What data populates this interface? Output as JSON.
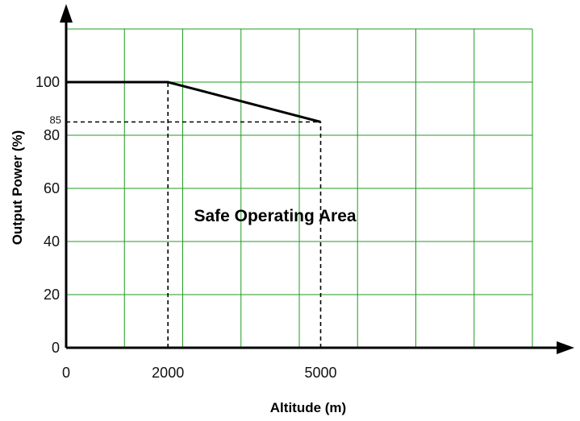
{
  "chart_data": {
    "type": "line",
    "xlabel": "Altitude (m)",
    "ylabel": "Output Power (%)",
    "xlim": [
      0,
      8000
    ],
    "ylim": [
      0,
      120
    ],
    "x_tick_labels": [
      {
        "value": 0,
        "label": "0"
      },
      {
        "value": 2000,
        "label": "2000"
      },
      {
        "value": 5000,
        "label": "5000"
      }
    ],
    "y_tick_labels": [
      {
        "value": 0,
        "label": "0"
      },
      {
        "value": 20,
        "label": "20"
      },
      {
        "value": 40,
        "label": "40"
      },
      {
        "value": 60,
        "label": "60"
      },
      {
        "value": 80,
        "label": "80"
      },
      {
        "value": 100,
        "label": "100"
      }
    ],
    "extra_y_label": {
      "value": 85,
      "label": "85"
    },
    "grid": true,
    "grid_color": "#1f9b1f",
    "series": [
      {
        "x": [
          0,
          2000,
          5000
        ],
        "y": [
          100,
          100,
          85
        ],
        "color": "#000000"
      }
    ],
    "reference_lines": [
      {
        "from": [
          2000,
          0
        ],
        "to": [
          2000,
          100
        ],
        "style": "dashed"
      },
      {
        "from": [
          5000,
          0
        ],
        "to": [
          5000,
          85
        ],
        "style": "dashed"
      },
      {
        "from": [
          0,
          85
        ],
        "to": [
          5000,
          85
        ],
        "style": "dashed"
      }
    ],
    "annotations": [
      {
        "text": "Safe Operating Area",
        "x": 2500,
        "y": 50
      }
    ]
  }
}
